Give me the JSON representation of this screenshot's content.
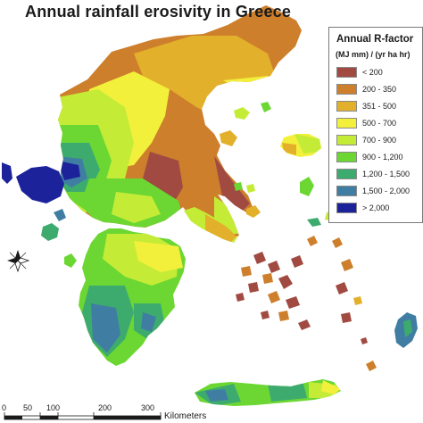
{
  "title": "Annual rainfall erosivity in Greece",
  "legend": {
    "title": "Annual R-factor",
    "units": "(MJ mm) / (yr ha hr)",
    "items": [
      {
        "label": "< 200",
        "color": "#a14a42"
      },
      {
        "label": "200 - 350",
        "color": "#cd7f2c"
      },
      {
        "label": "351 - 500",
        "color": "#e2b02a"
      },
      {
        "label": "500 - 700",
        "color": "#f3f03b"
      },
      {
        "label": "700 - 900",
        "color": "#c4ec36"
      },
      {
        "label": "900 - 1,200",
        "color": "#6cd732"
      },
      {
        "label": "1,200 - 1,500",
        "color": "#3dab6e"
      },
      {
        "label": "1,500 - 2,000",
        "color": "#3f7ea2"
      },
      {
        "label": "> 2,000",
        "color": "#1c239a"
      }
    ]
  },
  "scalebar": {
    "ticks": [
      "0",
      "50",
      "100",
      "200",
      "300"
    ],
    "unit": "Kilometers"
  },
  "north_arrow": {
    "icon": "compass-rose-icon"
  }
}
